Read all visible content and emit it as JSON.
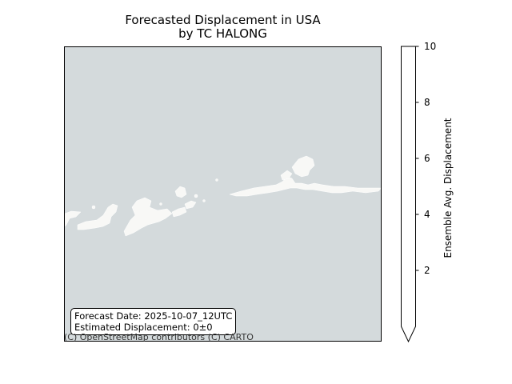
{
  "title_line1": "Forecasted Displacement in USA",
  "title_line2": "by TC HALONG",
  "info": {
    "forecast_date": "Forecast Date: 2025-10-07_12UTC",
    "estimated_displacement": "Estimated Displacement: 0±0"
  },
  "attribution": "(C) OpenStreetMap contributors (C) CARTO",
  "colors": {
    "water": "#d4dadc",
    "land": "#f8f8f6"
  },
  "colorbar": {
    "label": "Ensemble Avg. Displacement",
    "ticks": [
      {
        "value": 10,
        "label": "10"
      },
      {
        "value": 8,
        "label": "8"
      },
      {
        "value": 6,
        "label": "6"
      },
      {
        "value": 4,
        "label": "4"
      },
      {
        "value": 2,
        "label": "2"
      }
    ],
    "range": [
      0,
      10
    ],
    "extend": "min"
  }
}
